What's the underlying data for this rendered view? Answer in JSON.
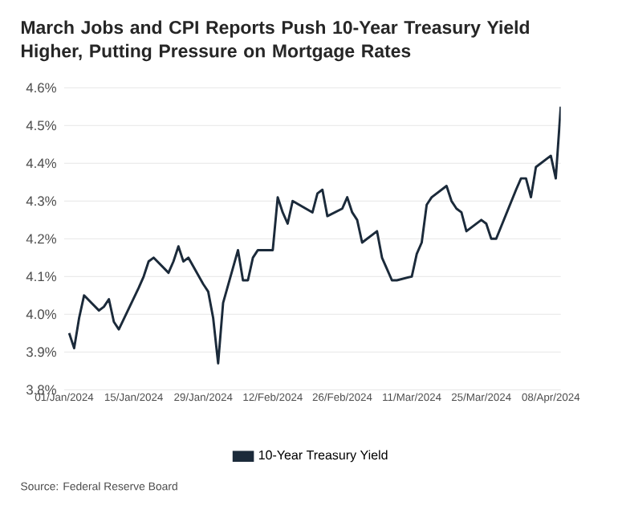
{
  "chart_data": {
    "type": "line",
    "title": "March Jobs and CPI Reports Push 10-Year Treasury Yield Higher, Putting Pressure on Mortgage Rates",
    "annotations": [
      "Source: Federal Reserve Board"
    ],
    "x": [
      "2024-01-02",
      "2024-01-03",
      "2024-01-04",
      "2024-01-05",
      "2024-01-08",
      "2024-01-09",
      "2024-01-10",
      "2024-01-11",
      "2024-01-12",
      "2024-01-16",
      "2024-01-17",
      "2024-01-18",
      "2024-01-19",
      "2024-01-22",
      "2024-01-23",
      "2024-01-24",
      "2024-01-25",
      "2024-01-26",
      "2024-01-29",
      "2024-01-30",
      "2024-01-31",
      "2024-02-01",
      "2024-02-02",
      "2024-02-05",
      "2024-02-06",
      "2024-02-07",
      "2024-02-08",
      "2024-02-09",
      "2024-02-12",
      "2024-02-13",
      "2024-02-14",
      "2024-02-15",
      "2024-02-16",
      "2024-02-20",
      "2024-02-21",
      "2024-02-22",
      "2024-02-23",
      "2024-02-26",
      "2024-02-27",
      "2024-02-28",
      "2024-02-29",
      "2024-03-01",
      "2024-03-04",
      "2024-03-05",
      "2024-03-06",
      "2024-03-07",
      "2024-03-08",
      "2024-03-11",
      "2024-03-12",
      "2024-03-13",
      "2024-03-14",
      "2024-03-15",
      "2024-03-18",
      "2024-03-19",
      "2024-03-20",
      "2024-03-21",
      "2024-03-22",
      "2024-03-25",
      "2024-03-26",
      "2024-03-27",
      "2024-03-28",
      "2024-04-01",
      "2024-04-02",
      "2024-04-03",
      "2024-04-04",
      "2024-04-05",
      "2024-04-08",
      "2024-04-09",
      "2024-04-10"
    ],
    "series": [
      {
        "name": "10-Year Treasury Yield",
        "color": "#1b2a3a",
        "values": [
          3.95,
          3.91,
          3.99,
          4.05,
          4.01,
          4.02,
          4.04,
          3.98,
          3.96,
          4.07,
          4.1,
          4.14,
          4.15,
          4.11,
          4.14,
          4.18,
          4.14,
          4.15,
          4.08,
          4.06,
          3.99,
          3.87,
          4.03,
          4.17,
          4.09,
          4.09,
          4.15,
          4.17,
          4.17,
          4.31,
          4.27,
          4.24,
          4.3,
          4.27,
          4.32,
          4.33,
          4.26,
          4.28,
          4.31,
          4.27,
          4.25,
          4.19,
          4.22,
          4.15,
          4.12,
          4.09,
          4.09,
          4.1,
          4.16,
          4.19,
          4.29,
          4.31,
          4.34,
          4.3,
          4.28,
          4.27,
          4.22,
          4.25,
          4.24,
          4.2,
          4.2,
          4.33,
          4.36,
          4.36,
          4.31,
          4.39,
          4.42,
          4.36,
          4.55
        ]
      }
    ],
    "xlim": [
      "2024-01-01",
      "2024-04-10"
    ],
    "xticks": [
      {
        "value": "2024-01-01",
        "label": "01/Jan/2024"
      },
      {
        "value": "2024-01-15",
        "label": "15/Jan/2024"
      },
      {
        "value": "2024-01-29",
        "label": "29/Jan/2024"
      },
      {
        "value": "2024-02-12",
        "label": "12/Feb/2024"
      },
      {
        "value": "2024-02-26",
        "label": "26/Feb/2024"
      },
      {
        "value": "2024-03-11",
        "label": "11/Mar/2024"
      },
      {
        "value": "2024-03-25",
        "label": "25/Mar/2024"
      },
      {
        "value": "2024-04-08",
        "label": "08/Apr/2024"
      }
    ],
    "ylim": [
      3.8,
      4.6
    ],
    "yticks": [
      {
        "value": 3.8,
        "label": "3.8%"
      },
      {
        "value": 3.9,
        "label": "3.9%"
      },
      {
        "value": 4.0,
        "label": "4.0%"
      },
      {
        "value": 4.1,
        "label": "4.1%"
      },
      {
        "value": 4.2,
        "label": "4.2%"
      },
      {
        "value": 4.3,
        "label": "4.3%"
      },
      {
        "value": 4.4,
        "label": "4.4%"
      },
      {
        "value": 4.5,
        "label": "4.5%"
      },
      {
        "value": 4.6,
        "label": "4.6%"
      }
    ],
    "grid": "y",
    "legend": "bottom",
    "marker": "none",
    "line_style": "solid"
  }
}
